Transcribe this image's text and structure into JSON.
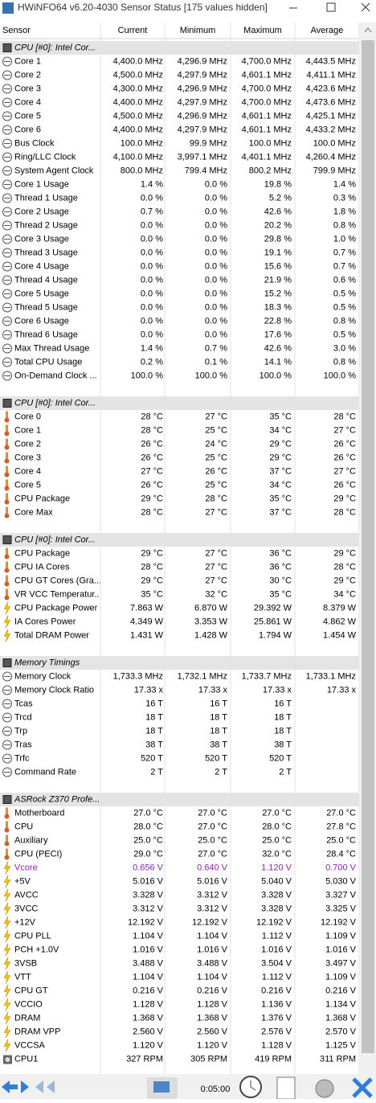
{
  "window": {
    "title": "HWiNFO64 v6.20-4030 Sensor Status [175 values hidden]"
  },
  "columns": [
    "Sensor",
    "Current",
    "Minimum",
    "Maximum",
    "Average"
  ],
  "groups": [
    {
      "title": "CPU [#0]: Intel Cor...",
      "rows": [
        {
          "cells": [
            "Core 1",
            "4,400.0 MHz",
            "4,296.9 MHz",
            "4,700.0 MHz",
            "4,443.5 MHz"
          ]
        },
        {
          "cells": [
            "Core 2",
            "4,500.0 MHz",
            "4,297.9 MHz",
            "4,601.1 MHz",
            "4,411.1 MHz"
          ]
        },
        {
          "cells": [
            "Core 3",
            "4,300.0 MHz",
            "4,296.9 MHz",
            "4,700.0 MHz",
            "4,423.6 MHz"
          ]
        },
        {
          "cells": [
            "Core 4",
            "4,400.0 MHz",
            "4,297.9 MHz",
            "4,700.0 MHz",
            "4,473.6 MHz"
          ]
        },
        {
          "cells": [
            "Core 5",
            "4,500.0 MHz",
            "4,296.9 MHz",
            "4,601.1 MHz",
            "4,425.1 MHz"
          ]
        },
        {
          "cells": [
            "Core 6",
            "4,400.0 MHz",
            "4,297.9 MHz",
            "4,601.1 MHz",
            "4,433.2 MHz"
          ]
        },
        {
          "cells": [
            "Bus Clock",
            "100.0 MHz",
            "99.9 MHz",
            "100.0 MHz",
            "100.0 MHz"
          ]
        },
        {
          "cells": [
            "Ring/LLC Clock",
            "4,100.0 MHz",
            "3,997.1 MHz",
            "4,401.1 MHz",
            "4,260.4 MHz"
          ]
        },
        {
          "cells": [
            "System Agent Clock",
            "800.0 MHz",
            "799.4 MHz",
            "800.2 MHz",
            "799.9 MHz"
          ]
        },
        {
          "cells": [
            "Core 1 Usage",
            "1.4 %",
            "0.0 %",
            "19.8 %",
            "1.4 %"
          ]
        },
        {
          "cells": [
            "Thread 1 Usage",
            "0.0 %",
            "0.0 %",
            "5.2 %",
            "0.3 %"
          ]
        },
        {
          "cells": [
            "Core 2 Usage",
            "0.7 %",
            "0.0 %",
            "42.6 %",
            "1.8 %"
          ]
        },
        {
          "cells": [
            "Thread 2 Usage",
            "0.0 %",
            "0.0 %",
            "20.2 %",
            "0.8 %"
          ]
        },
        {
          "cells": [
            "Core 3 Usage",
            "0.0 %",
            "0.0 %",
            "29.8 %",
            "1.0 %"
          ]
        },
        {
          "cells": [
            "Thread 3 Usage",
            "0.0 %",
            "0.0 %",
            "19.1 %",
            "0.7 %"
          ]
        },
        {
          "cells": [
            "Core 4 Usage",
            "0.0 %",
            "0.0 %",
            "15.6 %",
            "0.7 %"
          ]
        },
        {
          "cells": [
            "Thread 4 Usage",
            "0.0 %",
            "0.0 %",
            "21.9 %",
            "0.6 %"
          ]
        },
        {
          "cells": [
            "Core 5 Usage",
            "0.0 %",
            "0.0 %",
            "15.2 %",
            "0.5 %"
          ]
        },
        {
          "cells": [
            "Thread 5 Usage",
            "0.0 %",
            "0.0 %",
            "18.3 %",
            "0.5 %"
          ]
        },
        {
          "cells": [
            "Core 6 Usage",
            "0.0 %",
            "0.0 %",
            "22.8 %",
            "0.8 %"
          ]
        },
        {
          "cells": [
            "Thread 6 Usage",
            "0.0 %",
            "0.0 %",
            "17.6 %",
            "0.5 %"
          ]
        },
        {
          "cells": [
            "Max Thread Usage",
            "1.4 %",
            "0.7 %",
            "42.6 %",
            "3.0 %"
          ]
        },
        {
          "cells": [
            "Total CPU Usage",
            "0.2 %",
            "0.1 %",
            "14.1 %",
            "0.8 %"
          ]
        },
        {
          "cells": [
            "On-Demand Clock ...",
            "100.0 %",
            "100.0 %",
            "100.0 %",
            "100.0 %"
          ]
        }
      ]
    },
    {
      "title": "CPU [#0]: Intel Cor...",
      "rows": [
        {
          "cells": [
            "Core 0",
            "28 °C",
            "27 °C",
            "35 °C",
            "28 °C"
          ]
        },
        {
          "cells": [
            "Core 1",
            "28 °C",
            "25 °C",
            "34 °C",
            "27 °C"
          ]
        },
        {
          "cells": [
            "Core 2",
            "26 °C",
            "24 °C",
            "29 °C",
            "26 °C"
          ]
        },
        {
          "cells": [
            "Core 3",
            "26 °C",
            "25 °C",
            "29 °C",
            "26 °C"
          ]
        },
        {
          "cells": [
            "Core 4",
            "27 °C",
            "26 °C",
            "37 °C",
            "27 °C"
          ]
        },
        {
          "cells": [
            "Core 5",
            "26 °C",
            "25 °C",
            "34 °C",
            "26 °C"
          ]
        },
        {
          "cells": [
            "CPU Package",
            "29 °C",
            "28 °C",
            "35 °C",
            "29 °C"
          ]
        },
        {
          "cells": [
            "Core Max",
            "28 °C",
            "27 °C",
            "37 °C",
            "28 °C"
          ]
        }
      ]
    },
    {
      "title": "CPU [#0]: Intel Cor...",
      "rows": [
        {
          "cells": [
            "CPU Package",
            "29 °C",
            "27 °C",
            "36 °C",
            "29 °C"
          ]
        },
        {
          "cells": [
            "CPU IA Cores",
            "28 °C",
            "27 °C",
            "36 °C",
            "28 °C"
          ]
        },
        {
          "cells": [
            "CPU GT Cores (Gra...",
            "29 °C",
            "27 °C",
            "30 °C",
            "29 °C"
          ]
        },
        {
          "cells": [
            "VR VCC Temperatur...",
            "35 °C",
            "32 °C",
            "35 °C",
            "34 °C"
          ]
        },
        {
          "cells": [
            "CPU Package Power",
            "7.863 W",
            "6.870 W",
            "29.392 W",
            "8.379 W"
          ]
        },
        {
          "cells": [
            "IA Cores Power",
            "4.349 W",
            "3.353 W",
            "25.861 W",
            "4.862 W"
          ]
        },
        {
          "cells": [
            "Total DRAM Power",
            "1.431 W",
            "1.428 W",
            "1.794 W",
            "1.454 W"
          ]
        }
      ]
    },
    {
      "title": "Memory Timings",
      "rows": [
        {
          "cells": [
            "Memory Clock",
            "1,733.3 MHz",
            "1,732.1 MHz",
            "1,733.7 MHz",
            "1,733.1 MHz"
          ]
        },
        {
          "cells": [
            "Memory Clock Ratio",
            "17.33 x",
            "17.33 x",
            "17.33 x",
            "17.33 x"
          ]
        },
        {
          "cells": [
            "Tcas",
            "16 T",
            "16 T",
            "16 T",
            null
          ]
        },
        {
          "cells": [
            "Trcd",
            "18 T",
            "18 T",
            "18 T",
            null
          ]
        },
        {
          "cells": [
            "Trp",
            "18 T",
            "18 T",
            "18 T",
            null
          ]
        },
        {
          "cells": [
            "Tras",
            "38 T",
            "38 T",
            "38 T",
            null
          ]
        },
        {
          "cells": [
            "Trfc",
            "520 T",
            "520 T",
            "520 T",
            null
          ]
        },
        {
          "cells": [
            "Command Rate",
            "2 T",
            "2 T",
            "2 T",
            null
          ]
        }
      ]
    },
    {
      "title": "ASRock Z370 Profe...",
      "rows": [
        {
          "cells": [
            "Motherboard",
            "27.0 °C",
            "27.0 °C",
            "27.0 °C",
            "27.0 °C"
          ]
        },
        {
          "cells": [
            "CPU",
            "28.0 °C",
            "27.0 °C",
            "28.0 °C",
            "27.8 °C"
          ]
        },
        {
          "cells": [
            "Auxiliary",
            "25.0 °C",
            "25.0 °C",
            "25.0 °C",
            "25.0 °C"
          ]
        },
        {
          "cells": [
            "CPU (PECI)",
            "29.0 °C",
            "27.0 °C",
            "32.0 °C",
            "28.4 °C"
          ]
        },
        {
          "cells": [
            "Vcore",
            "0.656 V",
            "0.640 V",
            "1.120 V",
            "0.700 V"
          ],
          "color": "#8e24aa"
        },
        {
          "cells": [
            "+5V",
            "5.016 V",
            "5.016 V",
            "5.040 V",
            "5.030 V"
          ]
        },
        {
          "cells": [
            "AVCC",
            "3.328 V",
            "3.312 V",
            "3.328 V",
            "3.327 V"
          ]
        },
        {
          "cells": [
            "3VCC",
            "3.312 V",
            "3.312 V",
            "3.328 V",
            "3.325 V"
          ]
        },
        {
          "cells": [
            "+12V",
            "12.192 V",
            "12.192 V",
            "12.192 V",
            "12.192 V"
          ]
        },
        {
          "cells": [
            "CPU PLL",
            "1.104 V",
            "1.104 V",
            "1.112 V",
            "1.109 V"
          ]
        },
        {
          "cells": [
            "PCH +1.0V",
            "1.016 V",
            "1.016 V",
            "1.016 V",
            "1.016 V"
          ]
        },
        {
          "cells": [
            "3VSB",
            "3.488 V",
            "3.488 V",
            "3.504 V",
            "3.497 V"
          ]
        },
        {
          "cells": [
            "VTT",
            "1.104 V",
            "1.104 V",
            "1.112 V",
            "1.109 V"
          ]
        },
        {
          "cells": [
            "CPU GT",
            "0.216 V",
            "0.216 V",
            "0.216 V",
            "0.216 V"
          ]
        },
        {
          "cells": [
            "VCCIO",
            "1.128 V",
            "1.128 V",
            "1.136 V",
            "1.134 V"
          ]
        },
        {
          "cells": [
            "DRAM",
            "1.368 V",
            "1.368 V",
            "1.376 V",
            "1.368 V"
          ]
        },
        {
          "cells": [
            "DRAM VPP",
            "2.560 V",
            "2.560 V",
            "2.576 V",
            "2.570 V"
          ]
        },
        {
          "cells": [
            "VCCSA",
            "1.120 V",
            "1.120 V",
            "1.128 V",
            "1.125 V"
          ]
        },
        {
          "cells": [
            "CPU1",
            "327 RPM",
            "305 RPM",
            "419 RPM",
            "311 RPM"
          ]
        }
      ]
    }
  ],
  "toolbar": {
    "interval": "0:05:00"
  }
}
